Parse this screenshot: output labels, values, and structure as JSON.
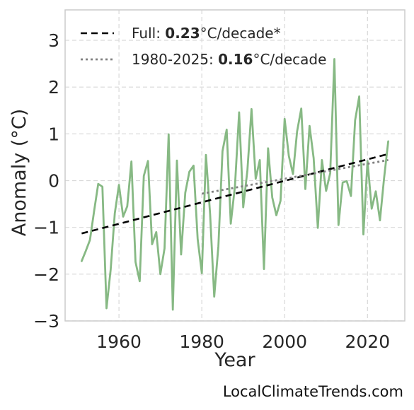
{
  "chart_data": {
    "type": "line",
    "xlabel": "Year",
    "ylabel": "Anomaly (°C)",
    "xlim": [
      1947,
      2029
    ],
    "ylim": [
      -3,
      3.65
    ],
    "x_ticks": [
      1960,
      1980,
      2000,
      2020
    ],
    "y_ticks": [
      -3,
      -2,
      -1,
      0,
      1,
      2,
      3
    ],
    "y_tick_labels": [
      "−3",
      "−2",
      "−1",
      "0",
      "1",
      "2",
      "3"
    ],
    "grid": true,
    "legend_position": "top-left",
    "series": [
      {
        "color": "#87b984",
        "style": "solid",
        "x": [
          1951,
          1952,
          1953,
          1954,
          1955,
          1956,
          1957,
          1958,
          1959,
          1960,
          1961,
          1962,
          1963,
          1964,
          1965,
          1966,
          1967,
          1968,
          1969,
          1970,
          1971,
          1972,
          1973,
          1974,
          1975,
          1976,
          1977,
          1978,
          1979,
          1980,
          1981,
          1982,
          1983,
          1984,
          1985,
          1986,
          1987,
          1988,
          1989,
          1990,
          1991,
          1992,
          1993,
          1994,
          1995,
          1996,
          1997,
          1998,
          1999,
          2000,
          2001,
          2002,
          2003,
          2004,
          2005,
          2006,
          2007,
          2008,
          2009,
          2010,
          2011,
          2012,
          2013,
          2014,
          2015,
          2016,
          2017,
          2018,
          2019,
          2020,
          2021,
          2022,
          2023,
          2024,
          2025
        ],
        "y": [
          -1.72,
          -1.5,
          -1.27,
          -0.65,
          -0.07,
          -0.13,
          -2.73,
          -1.9,
          -0.7,
          -0.09,
          -0.77,
          -0.55,
          0.41,
          -1.74,
          -2.15,
          0.1,
          0.42,
          -1.36,
          -1.1,
          -2.0,
          -1.45,
          0.99,
          -2.76,
          0.43,
          -1.58,
          -0.26,
          0.19,
          0.32,
          -1.25,
          -1.98,
          0.55,
          -0.72,
          -2.48,
          -1.4,
          0.63,
          1.09,
          -0.92,
          -0.12,
          1.46,
          -0.57,
          0.22,
          1.53,
          0.04,
          0.44,
          -1.89,
          0.69,
          -0.36,
          -0.74,
          -0.43,
          1.32,
          0.53,
          0.14,
          1.05,
          1.54,
          -0.18,
          1.17,
          0.48,
          -1.01,
          0.44,
          -0.22,
          0.16,
          2.6,
          -0.95,
          -0.04,
          -0.01,
          -0.33,
          1.29,
          1.8,
          -1.15,
          0.42,
          -0.6,
          -0.23,
          -0.85,
          0.05,
          0.84
        ]
      },
      {
        "name_prefix": "Full: ",
        "name_value": "0.23",
        "name_suffix": "°C/decade*",
        "color": "#000000",
        "style": "dashed",
        "x": [
          1951,
          2025
        ],
        "y": [
          -1.13,
          0.57
        ]
      },
      {
        "name_prefix": "1980-2025: ",
        "name_value": "0.16",
        "name_suffix": "°C/decade",
        "color": "#808080",
        "style": "dotted",
        "x": [
          1980,
          2025
        ],
        "y": [
          -0.28,
          0.44
        ]
      }
    ]
  },
  "watermark": "LocalClimateTrends.com"
}
